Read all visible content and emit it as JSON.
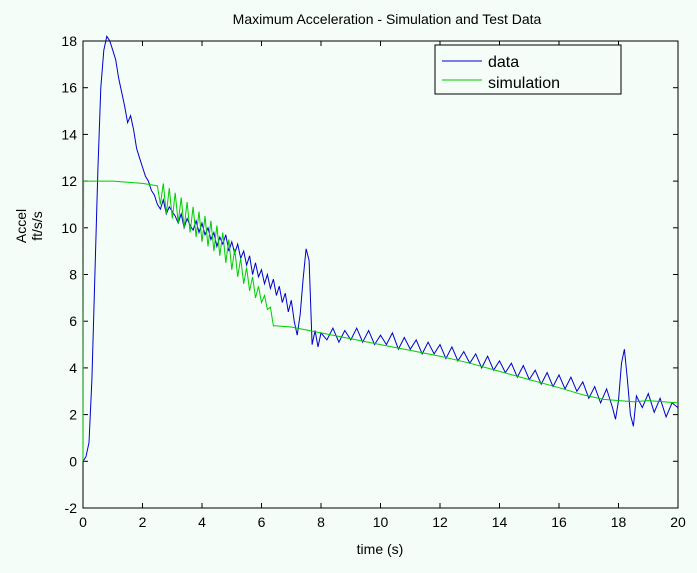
{
  "chart_data": {
    "type": "line",
    "title": "Maximum Acceleration - Simulation and Test Data",
    "xlabel": "time (s)",
    "ylabel_lines": [
      "Accel",
      "ft/s/s"
    ],
    "xlim": [
      0,
      20
    ],
    "ylim": [
      -2,
      18
    ],
    "xticks": [
      0,
      2,
      4,
      6,
      8,
      10,
      12,
      14,
      16,
      18,
      20
    ],
    "yticks": [
      -2,
      0,
      2,
      4,
      6,
      8,
      10,
      12,
      14,
      16,
      18
    ],
    "grid": false,
    "legend_position": "top-right",
    "series": [
      {
        "name": "data",
        "color": "#0000cc",
        "points": [
          [
            0.0,
            0.0
          ],
          [
            0.1,
            0.2
          ],
          [
            0.2,
            0.8
          ],
          [
            0.3,
            3.5
          ],
          [
            0.4,
            8.0
          ],
          [
            0.5,
            12.5
          ],
          [
            0.6,
            16.0
          ],
          [
            0.7,
            17.6
          ],
          [
            0.8,
            18.2
          ],
          [
            0.9,
            18.0
          ],
          [
            1.0,
            17.6
          ],
          [
            1.1,
            17.2
          ],
          [
            1.2,
            16.4
          ],
          [
            1.3,
            15.8
          ],
          [
            1.4,
            15.2
          ],
          [
            1.5,
            14.5
          ],
          [
            1.6,
            14.8
          ],
          [
            1.7,
            14.2
          ],
          [
            1.8,
            13.4
          ],
          [
            1.9,
            13.0
          ],
          [
            2.0,
            12.6
          ],
          [
            2.1,
            12.2
          ],
          [
            2.2,
            12.0
          ],
          [
            2.3,
            11.6
          ],
          [
            2.4,
            11.4
          ],
          [
            2.5,
            11.0
          ],
          [
            2.6,
            10.8
          ],
          [
            2.7,
            11.2
          ],
          [
            2.8,
            10.6
          ],
          [
            2.9,
            10.9
          ],
          [
            3.0,
            10.7
          ],
          [
            3.1,
            10.5
          ],
          [
            3.2,
            10.2
          ],
          [
            3.3,
            10.6
          ],
          [
            3.4,
            10.0
          ],
          [
            3.5,
            10.4
          ],
          [
            3.6,
            10.1
          ],
          [
            3.7,
            9.9
          ],
          [
            3.8,
            10.3
          ],
          [
            3.9,
            9.8
          ],
          [
            4.0,
            10.2
          ],
          [
            4.1,
            9.7
          ],
          [
            4.2,
            10.0
          ],
          [
            4.3,
            9.5
          ],
          [
            4.4,
            9.8
          ],
          [
            4.5,
            9.2
          ],
          [
            4.6,
            9.6
          ],
          [
            4.7,
            9.3
          ],
          [
            4.8,
            9.7
          ],
          [
            4.9,
            9.0
          ],
          [
            5.0,
            9.4
          ],
          [
            5.1,
            8.9
          ],
          [
            5.2,
            9.3
          ],
          [
            5.3,
            8.7
          ],
          [
            5.4,
            9.0
          ],
          [
            5.5,
            8.4
          ],
          [
            5.6,
            8.8
          ],
          [
            5.7,
            8.0
          ],
          [
            5.8,
            8.5
          ],
          [
            5.9,
            7.9
          ],
          [
            6.0,
            8.2
          ],
          [
            6.1,
            7.6
          ],
          [
            6.2,
            8.0
          ],
          [
            6.3,
            7.4
          ],
          [
            6.4,
            7.8
          ],
          [
            6.5,
            7.1
          ],
          [
            6.6,
            7.5
          ],
          [
            6.7,
            6.8
          ],
          [
            6.8,
            7.2
          ],
          [
            6.9,
            6.4
          ],
          [
            7.0,
            6.9
          ],
          [
            7.1,
            6.0
          ],
          [
            7.2,
            5.4
          ],
          [
            7.3,
            6.3
          ],
          [
            7.4,
            7.8
          ],
          [
            7.5,
            9.1
          ],
          [
            7.6,
            8.6
          ],
          [
            7.7,
            5.0
          ],
          [
            7.8,
            5.6
          ],
          [
            7.9,
            4.9
          ],
          [
            8.0,
            5.5
          ],
          [
            8.2,
            5.2
          ],
          [
            8.4,
            5.7
          ],
          [
            8.6,
            5.1
          ],
          [
            8.8,
            5.6
          ],
          [
            9.0,
            5.2
          ],
          [
            9.2,
            5.7
          ],
          [
            9.4,
            5.1
          ],
          [
            9.6,
            5.6
          ],
          [
            9.8,
            5.0
          ],
          [
            10.0,
            5.4
          ],
          [
            10.2,
            5.0
          ],
          [
            10.4,
            5.5
          ],
          [
            10.6,
            4.8
          ],
          [
            10.8,
            5.3
          ],
          [
            11.0,
            4.8
          ],
          [
            11.2,
            5.2
          ],
          [
            11.4,
            4.6
          ],
          [
            11.6,
            5.1
          ],
          [
            11.8,
            4.6
          ],
          [
            12.0,
            5.0
          ],
          [
            12.2,
            4.4
          ],
          [
            12.4,
            4.9
          ],
          [
            12.6,
            4.3
          ],
          [
            12.8,
            4.7
          ],
          [
            13.0,
            4.2
          ],
          [
            13.2,
            4.6
          ],
          [
            13.4,
            4.0
          ],
          [
            13.6,
            4.5
          ],
          [
            13.8,
            3.9
          ],
          [
            14.0,
            4.3
          ],
          [
            14.2,
            3.8
          ],
          [
            14.4,
            4.2
          ],
          [
            14.6,
            3.6
          ],
          [
            14.8,
            4.1
          ],
          [
            15.0,
            3.5
          ],
          [
            15.2,
            3.9
          ],
          [
            15.4,
            3.3
          ],
          [
            15.6,
            3.8
          ],
          [
            15.8,
            3.2
          ],
          [
            16.0,
            3.7
          ],
          [
            16.2,
            3.1
          ],
          [
            16.4,
            3.6
          ],
          [
            16.6,
            3.0
          ],
          [
            16.8,
            3.4
          ],
          [
            17.0,
            2.7
          ],
          [
            17.2,
            3.2
          ],
          [
            17.4,
            2.5
          ],
          [
            17.6,
            3.1
          ],
          [
            17.8,
            2.3
          ],
          [
            17.9,
            1.8
          ],
          [
            18.0,
            2.6
          ],
          [
            18.1,
            4.2
          ],
          [
            18.2,
            4.8
          ],
          [
            18.3,
            3.5
          ],
          [
            18.4,
            2.0
          ],
          [
            18.5,
            1.5
          ],
          [
            18.6,
            2.8
          ],
          [
            18.8,
            2.3
          ],
          [
            19.0,
            2.9
          ],
          [
            19.2,
            2.1
          ],
          [
            19.4,
            2.7
          ],
          [
            19.6,
            1.9
          ],
          [
            19.8,
            2.5
          ],
          [
            20.0,
            2.3
          ]
        ]
      },
      {
        "name": "simulation",
        "color": "#00cc00",
        "points": [
          [
            0.0,
            0.0
          ],
          [
            0.02,
            12.0
          ],
          [
            0.5,
            12.0
          ],
          [
            1.0,
            12.0
          ],
          [
            1.5,
            11.95
          ],
          [
            2.0,
            11.9
          ],
          [
            2.5,
            11.8
          ],
          [
            2.6,
            11.0
          ],
          [
            2.7,
            11.9
          ],
          [
            2.8,
            10.6
          ],
          [
            2.9,
            11.7
          ],
          [
            3.0,
            10.4
          ],
          [
            3.1,
            11.5
          ],
          [
            3.2,
            10.2
          ],
          [
            3.3,
            11.3
          ],
          [
            3.4,
            10.0
          ],
          [
            3.5,
            11.1
          ],
          [
            3.6,
            9.8
          ],
          [
            3.7,
            10.9
          ],
          [
            3.8,
            9.6
          ],
          [
            3.9,
            10.7
          ],
          [
            4.0,
            9.4
          ],
          [
            4.1,
            10.5
          ],
          [
            4.2,
            9.2
          ],
          [
            4.3,
            10.3
          ],
          [
            4.4,
            9.0
          ],
          [
            4.5,
            10.1
          ],
          [
            4.6,
            8.8
          ],
          [
            4.7,
            9.8
          ],
          [
            4.8,
            8.5
          ],
          [
            4.9,
            9.5
          ],
          [
            5.0,
            8.2
          ],
          [
            5.1,
            9.1
          ],
          [
            5.2,
            7.9
          ],
          [
            5.3,
            8.7
          ],
          [
            5.4,
            7.6
          ],
          [
            5.5,
            8.3
          ],
          [
            5.6,
            7.3
          ],
          [
            5.7,
            7.9
          ],
          [
            5.8,
            7.0
          ],
          [
            5.9,
            7.5
          ],
          [
            6.0,
            6.8
          ],
          [
            6.1,
            7.1
          ],
          [
            6.2,
            6.5
          ],
          [
            6.3,
            6.6
          ],
          [
            6.4,
            5.8
          ],
          [
            6.5,
            5.8
          ],
          [
            7.0,
            5.75
          ],
          [
            8.0,
            5.5
          ],
          [
            9.0,
            5.25
          ],
          [
            10.0,
            5.0
          ],
          [
            11.0,
            4.75
          ],
          [
            12.0,
            4.5
          ],
          [
            13.0,
            4.2
          ],
          [
            14.0,
            3.85
          ],
          [
            15.0,
            3.5
          ],
          [
            16.0,
            3.15
          ],
          [
            16.8,
            2.85
          ],
          [
            17.5,
            2.65
          ],
          [
            18.5,
            2.55
          ],
          [
            19.0,
            2.6
          ],
          [
            20.0,
            2.5
          ]
        ]
      }
    ]
  }
}
